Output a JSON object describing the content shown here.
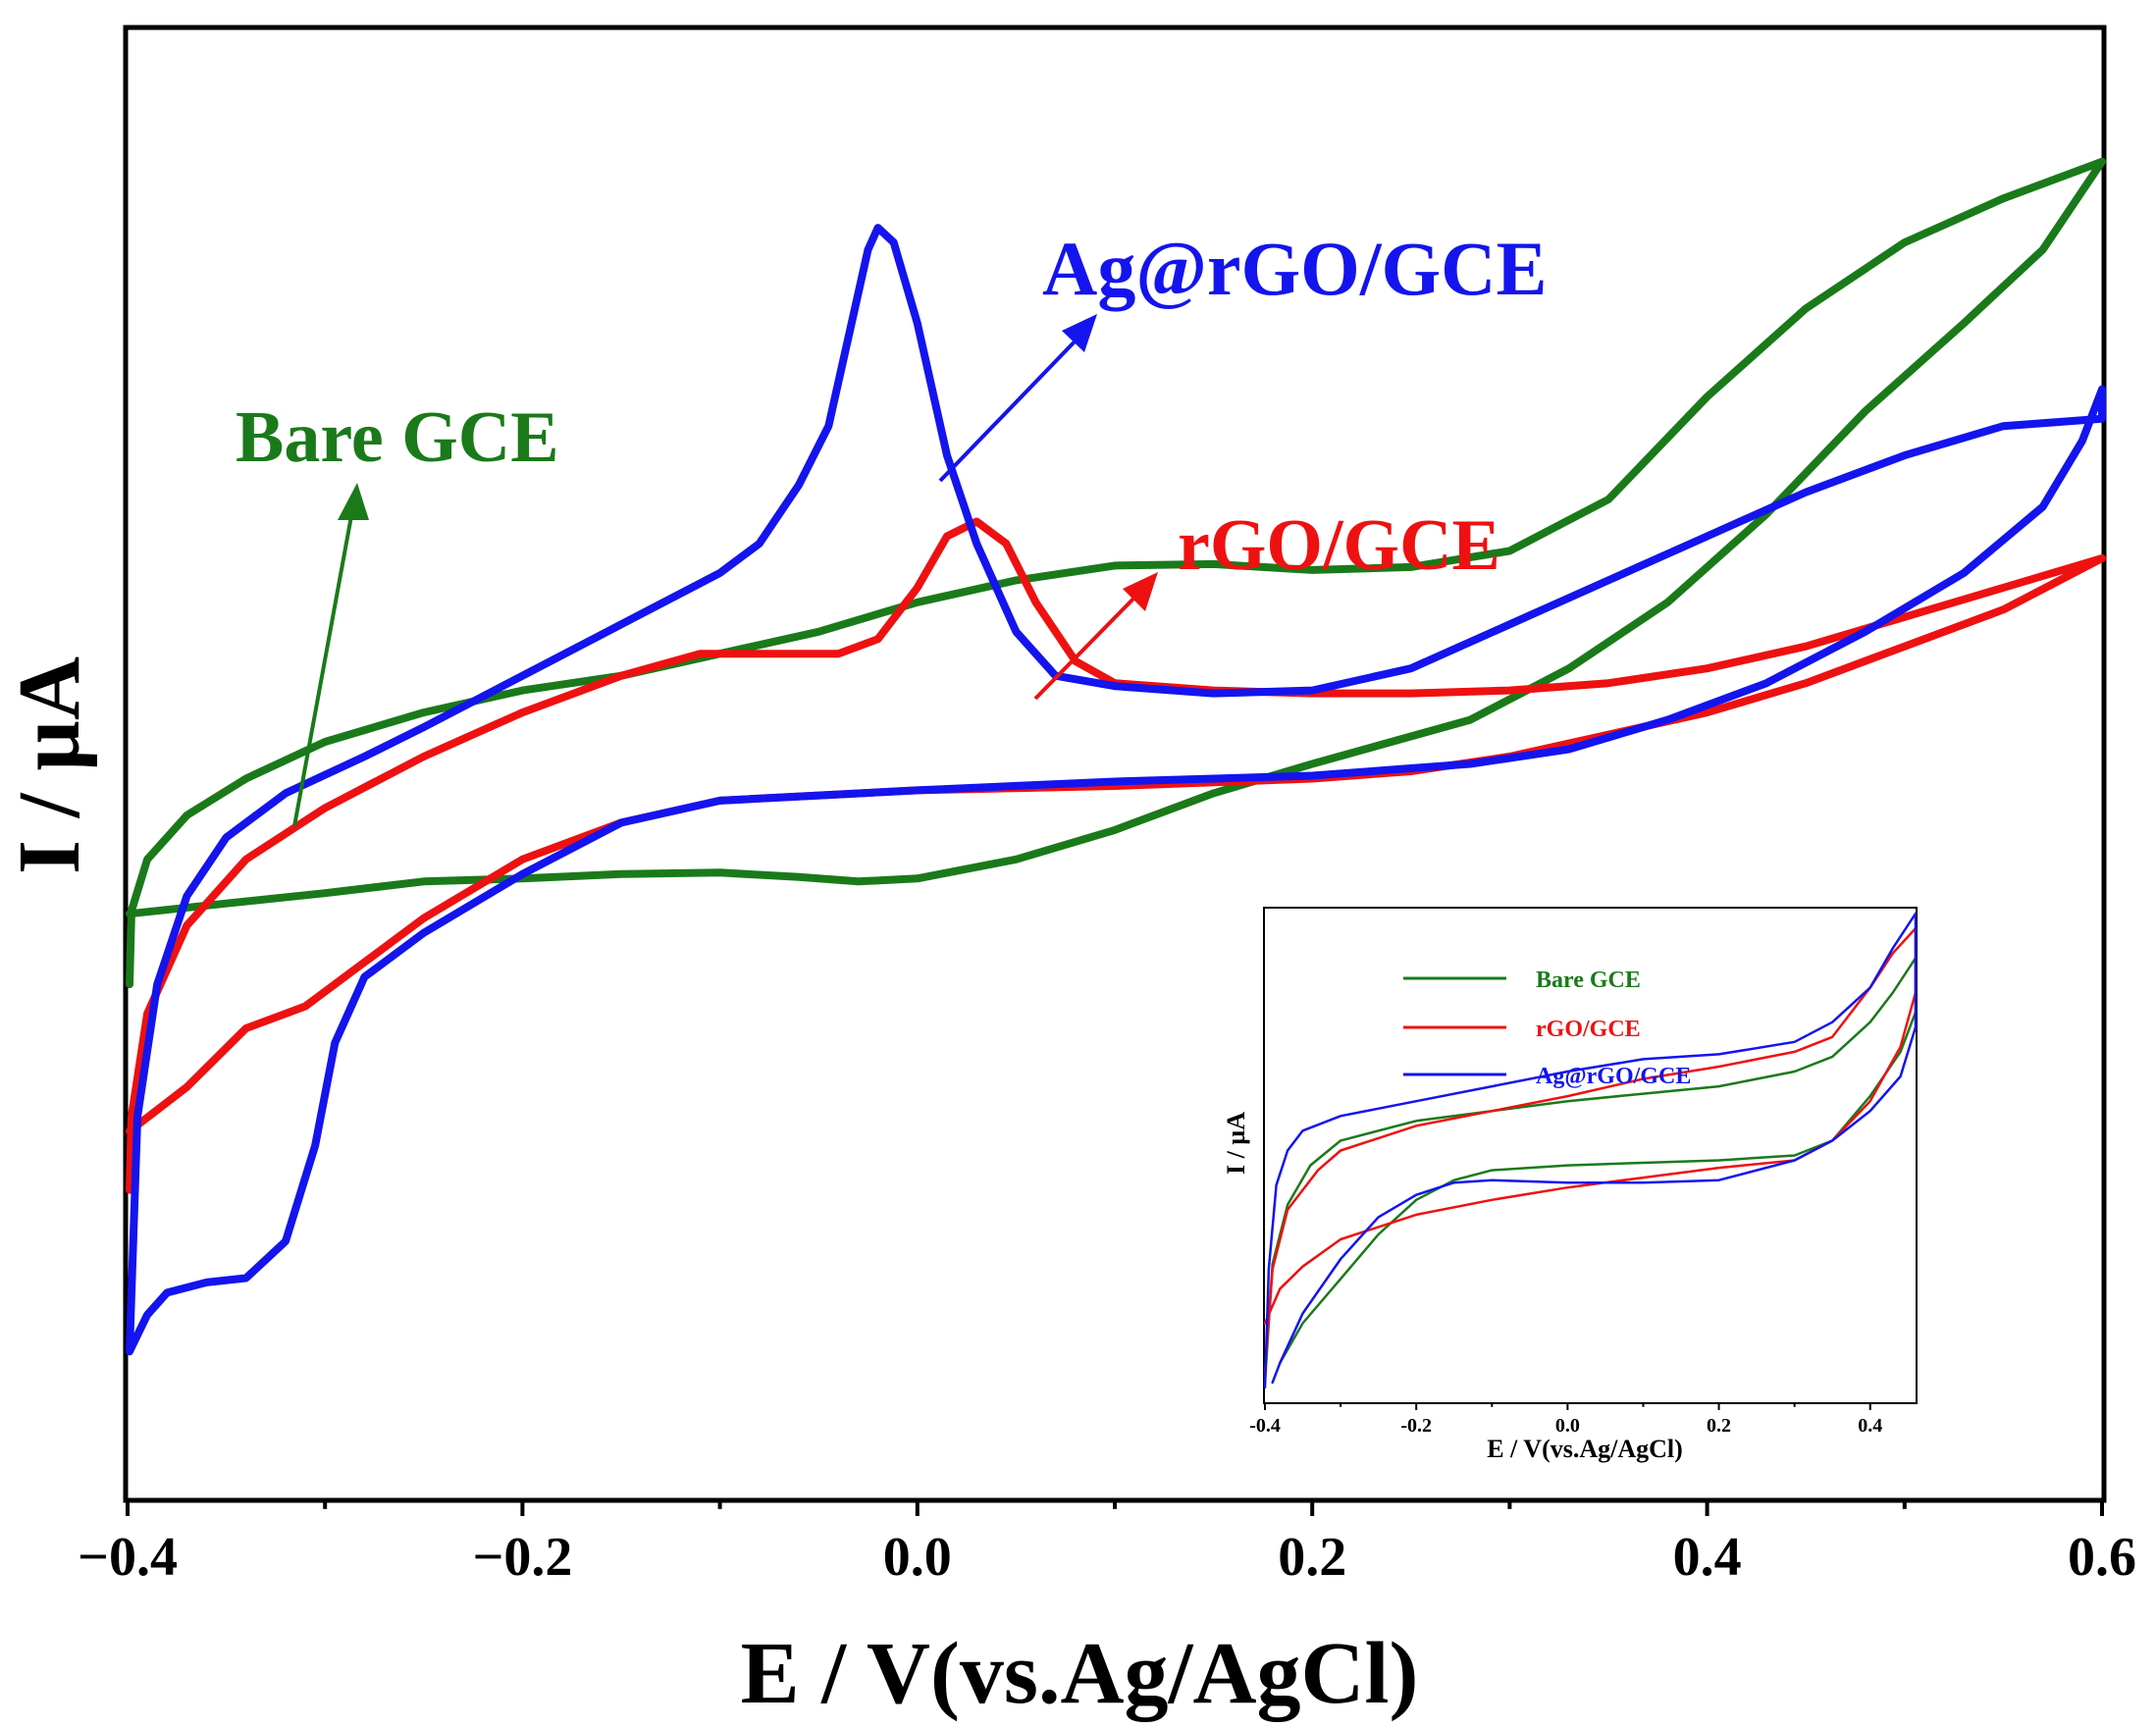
{
  "chart_data": [
    {
      "type": "line",
      "subtype": "cyclic-voltammogram",
      "xlabel": "E / V(vs.Ag/AgCl)",
      "ylabel": "I / µA",
      "xlim": [
        -0.4,
        0.6
      ],
      "ylim": [
        0,
        100
      ],
      "x_ticks": [
        -0.4,
        -0.2,
        0.0,
        0.2,
        0.4,
        0.6
      ],
      "x_tick_labels": [
        "−0.4",
        "−0.2",
        "0.0",
        "0.2",
        "0.4",
        "0.6"
      ],
      "y_tick_labels": [],
      "grid": false,
      "series": [
        {
          "name": "Bare GCE",
          "color": "#1a7a1a",
          "points": [
            [
              -0.399,
              35
            ],
            [
              -0.398,
              40
            ],
            [
              -0.39,
              43.5
            ],
            [
              -0.37,
              46.5
            ],
            [
              -0.34,
              49
            ],
            [
              -0.3,
              51.5
            ],
            [
              -0.25,
              53.5
            ],
            [
              -0.2,
              55
            ],
            [
              -0.15,
              56
            ],
            [
              -0.1,
              57.5
            ],
            [
              -0.05,
              59
            ],
            [
              0.0,
              61
            ],
            [
              0.05,
              62.5
            ],
            [
              0.1,
              63.5
            ],
            [
              0.15,
              63.6
            ],
            [
              0.2,
              63.2
            ],
            [
              0.25,
              63.4
            ],
            [
              0.3,
              64.5
            ],
            [
              0.35,
              68
            ],
            [
              0.4,
              75
            ],
            [
              0.45,
              81
            ],
            [
              0.5,
              85.5
            ],
            [
              0.55,
              88.5
            ],
            [
              0.6,
              91
            ],
            [
              0.57,
              85
            ],
            [
              0.53,
              80
            ],
            [
              0.48,
              74
            ],
            [
              0.43,
              67
            ],
            [
              0.38,
              61
            ],
            [
              0.33,
              56.5
            ],
            [
              0.28,
              53
            ],
            [
              0.2,
              50
            ],
            [
              0.15,
              48
            ],
            [
              0.1,
              45.5
            ],
            [
              0.05,
              43.5
            ],
            [
              0.0,
              42.2
            ],
            [
              -0.03,
              42
            ],
            [
              -0.06,
              42.3
            ],
            [
              -0.1,
              42.6
            ],
            [
              -0.15,
              42.5
            ],
            [
              -0.2,
              42.2
            ],
            [
              -0.25,
              42
            ],
            [
              -0.3,
              41.2
            ],
            [
              -0.35,
              40.5
            ],
            [
              -0.399,
              39.8
            ]
          ]
        },
        {
          "name": "rGO/GCE",
          "color": "#ee1111",
          "points": [
            [
              -0.399,
              21
            ],
            [
              -0.398,
              26
            ],
            [
              -0.39,
              33
            ],
            [
              -0.37,
              39
            ],
            [
              -0.34,
              43.5
            ],
            [
              -0.3,
              47
            ],
            [
              -0.25,
              50.5
            ],
            [
              -0.2,
              53.5
            ],
            [
              -0.15,
              56
            ],
            [
              -0.11,
              57.5
            ],
            [
              -0.08,
              57.5
            ],
            [
              -0.04,
              57.5
            ],
            [
              -0.02,
              58.5
            ],
            [
              0.0,
              62
            ],
            [
              0.015,
              65.5
            ],
            [
              0.03,
              66.5
            ],
            [
              0.045,
              65
            ],
            [
              0.06,
              61
            ],
            [
              0.08,
              57
            ],
            [
              0.1,
              55.5
            ],
            [
              0.15,
              55
            ],
            [
              0.2,
              54.8
            ],
            [
              0.25,
              54.8
            ],
            [
              0.3,
              55
            ],
            [
              0.35,
              55.5
            ],
            [
              0.4,
              56.5
            ],
            [
              0.45,
              58
            ],
            [
              0.5,
              60
            ],
            [
              0.55,
              62
            ],
            [
              0.6,
              64
            ],
            [
              0.55,
              60.5
            ],
            [
              0.5,
              58
            ],
            [
              0.45,
              55.5
            ],
            [
              0.4,
              53.5
            ],
            [
              0.35,
              52
            ],
            [
              0.3,
              50.5
            ],
            [
              0.25,
              49.5
            ],
            [
              0.2,
              49
            ],
            [
              0.1,
              48.5
            ],
            [
              0.0,
              48.2
            ],
            [
              -0.1,
              47.5
            ],
            [
              -0.15,
              46
            ],
            [
              -0.2,
              43.5
            ],
            [
              -0.25,
              39.5
            ],
            [
              -0.28,
              36.5
            ],
            [
              -0.31,
              33.5
            ],
            [
              -0.32,
              33
            ],
            [
              -0.34,
              32
            ],
            [
              -0.37,
              28
            ],
            [
              -0.399,
              25
            ]
          ]
        },
        {
          "name": "Ag@rGO/GCE",
          "color": "#1414ee",
          "points": [
            [
              -0.399,
              10
            ],
            [
              -0.398,
              14
            ],
            [
              -0.395,
              26
            ],
            [
              -0.385,
              35
            ],
            [
              -0.37,
              41
            ],
            [
              -0.35,
              45
            ],
            [
              -0.32,
              48
            ],
            [
              -0.28,
              50.5
            ],
            [
              -0.25,
              52.5
            ],
            [
              -0.2,
              56
            ],
            [
              -0.15,
              59.5
            ],
            [
              -0.1,
              63
            ],
            [
              -0.08,
              65
            ],
            [
              -0.06,
              69
            ],
            [
              -0.045,
              73
            ],
            [
              -0.035,
              79
            ],
            [
              -0.025,
              85
            ],
            [
              -0.02,
              86.5
            ],
            [
              -0.012,
              85.5
            ],
            [
              0.0,
              80
            ],
            [
              0.015,
              71
            ],
            [
              0.03,
              65
            ],
            [
              0.05,
              59
            ],
            [
              0.07,
              56
            ],
            [
              0.1,
              55.3
            ],
            [
              0.15,
              54.8
            ],
            [
              0.2,
              55
            ],
            [
              0.25,
              56.5
            ],
            [
              0.3,
              59.5
            ],
            [
              0.35,
              62.5
            ],
            [
              0.4,
              65.5
            ],
            [
              0.45,
              68.5
            ],
            [
              0.5,
              71
            ],
            [
              0.55,
              73
            ],
            [
              0.6,
              73.5
            ],
            [
              0.6,
              75.5
            ],
            [
              0.59,
              72
            ],
            [
              0.57,
              67.5
            ],
            [
              0.53,
              63
            ],
            [
              0.48,
              59
            ],
            [
              0.43,
              55.5
            ],
            [
              0.38,
              53
            ],
            [
              0.33,
              51
            ],
            [
              0.28,
              50
            ],
            [
              0.2,
              49.2
            ],
            [
              0.1,
              48.8
            ],
            [
              0.0,
              48.2
            ],
            [
              -0.1,
              47.5
            ],
            [
              -0.15,
              46
            ],
            [
              -0.2,
              42.5
            ],
            [
              -0.25,
              38.5
            ],
            [
              -0.28,
              35.5
            ],
            [
              -0.295,
              31
            ],
            [
              -0.305,
              24
            ],
            [
              -0.32,
              17.5
            ],
            [
              -0.34,
              15
            ],
            [
              -0.36,
              14.7
            ],
            [
              -0.38,
              14
            ],
            [
              -0.39,
              12.5
            ],
            [
              -0.399,
              10
            ]
          ]
        }
      ],
      "annotations": [
        {
          "text": "Bare GCE",
          "color": "#1a7a1a",
          "points_to": "Bare GCE"
        },
        {
          "text": "Ag@rGO/GCE",
          "color": "#1414ee",
          "points_to": "Ag@rGO/GCE"
        },
        {
          "text": "rGO/GCE",
          "color": "#ee1111",
          "points_to": "rGO/GCE"
        }
      ]
    },
    {
      "type": "line",
      "role": "inset",
      "xlabel": "E / V(vs.Ag/AgCl)",
      "ylabel": "I / µA",
      "xlim": [
        -0.4,
        0.46
      ],
      "ylim": [
        0,
        100
      ],
      "x_ticks": [
        -0.4,
        -0.2,
        0.0,
        0.2,
        0.4
      ],
      "x_tick_labels": [
        "-0.4",
        "-0.2",
        "0.0",
        "0.2",
        "0.4"
      ],
      "legend": "top-left",
      "series": [
        {
          "name": "Bare GCE",
          "color": "#1a7a1a",
          "points": [
            [
              -0.4,
              4
            ],
            [
              -0.39,
              28
            ],
            [
              -0.37,
              40
            ],
            [
              -0.34,
              48
            ],
            [
              -0.3,
              53
            ],
            [
              -0.2,
              57
            ],
            [
              -0.1,
              59
            ],
            [
              0.0,
              61
            ],
            [
              0.1,
              62.5
            ],
            [
              0.2,
              64
            ],
            [
              0.3,
              67
            ],
            [
              0.35,
              70
            ],
            [
              0.4,
              77
            ],
            [
              0.43,
              83
            ],
            [
              0.46,
              90
            ],
            [
              0.46,
              79
            ],
            [
              0.44,
              71
            ],
            [
              0.4,
              62
            ],
            [
              0.35,
              53
            ],
            [
              0.3,
              50
            ],
            [
              0.2,
              49
            ],
            [
              0.1,
              48.5
            ],
            [
              0.0,
              48
            ],
            [
              -0.1,
              47
            ],
            [
              -0.15,
              45
            ],
            [
              -0.2,
              41
            ],
            [
              -0.25,
              34
            ],
            [
              -0.3,
              25
            ],
            [
              -0.35,
              16
            ],
            [
              -0.38,
              8
            ]
          ]
        },
        {
          "name": "rGO/GCE",
          "color": "#ee1111",
          "points": [
            [
              -0.4,
              6
            ],
            [
              -0.39,
              27
            ],
            [
              -0.37,
              39
            ],
            [
              -0.33,
              47
            ],
            [
              -0.3,
              51
            ],
            [
              -0.2,
              56
            ],
            [
              -0.1,
              59
            ],
            [
              0.0,
              62
            ],
            [
              0.1,
              65.5
            ],
            [
              0.2,
              68
            ],
            [
              0.3,
              71
            ],
            [
              0.35,
              74
            ],
            [
              0.4,
              84
            ],
            [
              0.43,
              91
            ],
            [
              0.46,
              96
            ],
            [
              0.46,
              83
            ],
            [
              0.44,
              72
            ],
            [
              0.4,
              61
            ],
            [
              0.35,
              53
            ],
            [
              0.3,
              49
            ],
            [
              0.2,
              47.5
            ],
            [
              0.1,
              45.5
            ],
            [
              0.0,
              43.5
            ],
            [
              -0.1,
              41
            ],
            [
              -0.2,
              38
            ],
            [
              -0.3,
              33
            ],
            [
              -0.35,
              27.5
            ],
            [
              -0.38,
              23
            ],
            [
              -0.4,
              16
            ]
          ]
        },
        {
          "name": "Ag@rGO/GCE",
          "color": "#1414ee",
          "points": [
            [
              -0.4,
              3
            ],
            [
              -0.395,
              27
            ],
            [
              -0.385,
              44
            ],
            [
              -0.37,
              51
            ],
            [
              -0.35,
              55
            ],
            [
              -0.3,
              58
            ],
            [
              -0.2,
              61
            ],
            [
              -0.1,
              64
            ],
            [
              0.0,
              67
            ],
            [
              0.1,
              69.5
            ],
            [
              0.2,
              70.5
            ],
            [
              0.3,
              73
            ],
            [
              0.35,
              77
            ],
            [
              0.4,
              84
            ],
            [
              0.43,
              92
            ],
            [
              0.46,
              99
            ],
            [
              0.46,
              76
            ],
            [
              0.44,
              66
            ],
            [
              0.4,
              59
            ],
            [
              0.35,
              53
            ],
            [
              0.3,
              49
            ],
            [
              0.2,
              45
            ],
            [
              0.1,
              44.5
            ],
            [
              0.0,
              44.5
            ],
            [
              -0.1,
              45
            ],
            [
              -0.15,
              44.5
            ],
            [
              -0.2,
              42
            ],
            [
              -0.25,
              37.5
            ],
            [
              -0.3,
              29
            ],
            [
              -0.35,
              18
            ],
            [
              -0.38,
              8
            ],
            [
              -0.39,
              4
            ]
          ]
        }
      ]
    }
  ]
}
